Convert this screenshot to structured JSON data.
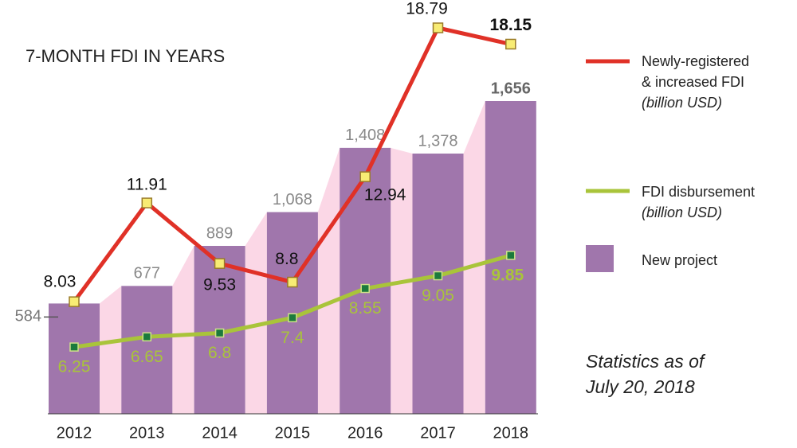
{
  "chart_data": {
    "type": "bar-line",
    "title": "7-MONTH FDI IN YEARS",
    "note": "Statistics as of July 20, 2018",
    "categories": [
      "2012",
      "2013",
      "2014",
      "2015",
      "2016",
      "2017",
      "2018"
    ],
    "series": [
      {
        "name": "New project",
        "type": "bar",
        "color": "#a076ac",
        "values": [
          584,
          677,
          889,
          1068,
          1408,
          1378,
          1656
        ],
        "value_labels": [
          "584",
          "677",
          "889",
          "1,068",
          "1,408",
          "1,378",
          "1,656"
        ]
      },
      {
        "name": "Newly-registered & increased FDI",
        "unit": "(billion USD)",
        "type": "line",
        "color": "#e03127",
        "values": [
          8.03,
          11.91,
          9.53,
          8.8,
          12.94,
          18.79,
          18.15
        ]
      },
      {
        "name": "FDI disbursement",
        "unit": "(billion USD)",
        "type": "line",
        "color": "#a9c43a",
        "values": [
          6.25,
          6.65,
          6.8,
          7.4,
          8.55,
          9.05,
          9.85
        ]
      }
    ]
  }
}
